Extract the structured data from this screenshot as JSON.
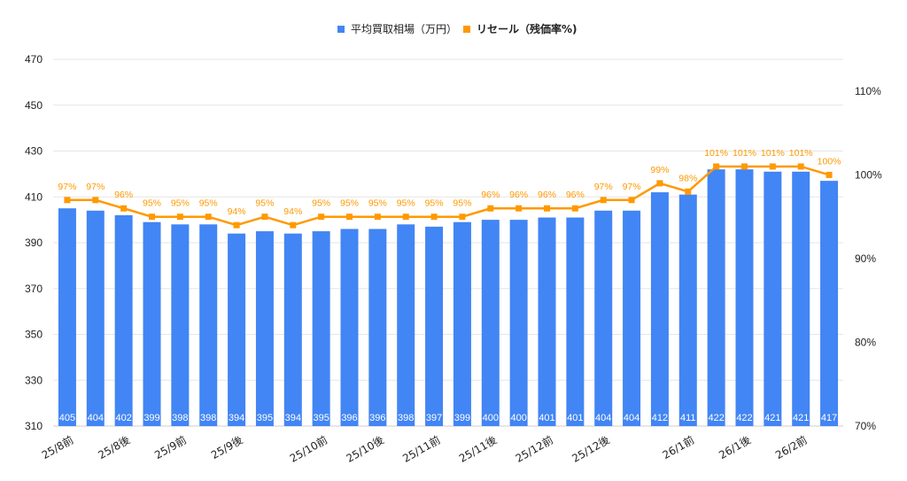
{
  "chart_data": {
    "type": "bar+line",
    "title": "",
    "categories": [
      "25/8前",
      "",
      "25/8後",
      "",
      "25/9前",
      "",
      "25/9後",
      "",
      "",
      "25/10前",
      "",
      "25/10後",
      "",
      "25/11前",
      "",
      "25/11後",
      "",
      "25/12前",
      "",
      "25/12後",
      "",
      "",
      "26/1前",
      "",
      "26/1後",
      "",
      "26/2前",
      ""
    ],
    "series": [
      {
        "name": "平均買取相場（万円）",
        "type": "bar",
        "axis": "left",
        "color": "#4285F4",
        "values": [
          405,
          404,
          402,
          399,
          398,
          398,
          394,
          395,
          394,
          395,
          396,
          396,
          398,
          397,
          399,
          400,
          400,
          401,
          401,
          404,
          404,
          412,
          411,
          422,
          422,
          421,
          421,
          417
        ]
      },
      {
        "name": "リセール（残価率%)",
        "type": "line",
        "axis": "right",
        "color": "#FF9900",
        "values": [
          97,
          97,
          96,
          95,
          95,
          95,
          94,
          95,
          94,
          95,
          95,
          95,
          95,
          95,
          95,
          96,
          96,
          96,
          96,
          97,
          97,
          99,
          98,
          101,
          101,
          101,
          101,
          100
        ]
      }
    ],
    "y_left": {
      "ticks": [
        310,
        330,
        350,
        370,
        390,
        410,
        430,
        450,
        470
      ],
      "ylim": [
        310,
        470
      ]
    },
    "y_right": {
      "ticks": [
        "70%",
        "80%",
        "90%",
        "100%",
        "110%"
      ],
      "tick_values": [
        70,
        80,
        90,
        100,
        110
      ],
      "ylim": [
        70,
        113.8
      ]
    },
    "grid": true,
    "legend": "top-center"
  }
}
